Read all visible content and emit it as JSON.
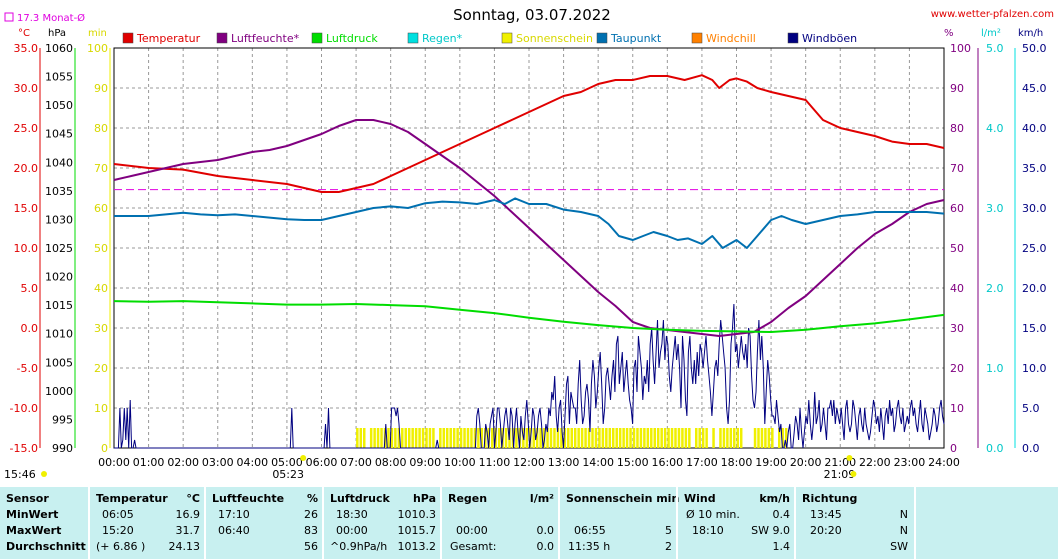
{
  "header": {
    "title": "Sonntag, 03.07.2022",
    "site": "www.wetter-pfalzen.com",
    "month_avg": "17.3 Monat-Ø",
    "footer_time": "15:46"
  },
  "colors": {
    "temperature": "#e00000",
    "humidity": "#800080",
    "pressure": "#00dd00",
    "rain": "#00e0e0",
    "sunshine": "#f0f000",
    "dewpoint": "#0070b0",
    "windchill": "#ff8000",
    "gusts": "#000080",
    "month_avg": "#e000e0"
  },
  "chart_data": {
    "type": "line",
    "title": "Sonntag, 03.07.2022",
    "x_range_hours": [
      0,
      24
    ],
    "x_ticks": [
      "00:00",
      "01:00",
      "02:00",
      "03:00",
      "04:00",
      "05:00",
      "06:00",
      "07:00",
      "08:00",
      "09:00",
      "10:00",
      "11:00",
      "12:00",
      "13:00",
      "14:00",
      "15:00",
      "16:00",
      "17:00",
      "18:00",
      "19:00",
      "20:00",
      "21:00",
      "22:00",
      "23:00",
      "24:00"
    ],
    "sunrise": "05:23",
    "sunset": "21:09",
    "month_avg_temp": 17.3,
    "axes": {
      "temp": {
        "unit": "°C",
        "range": [
          -15,
          35
        ],
        "ticks": [
          "35.0",
          "30.0",
          "25.0",
          "20.0",
          "15.0",
          "10.0",
          "5.0",
          "0.0",
          "-5.0",
          "-10.0",
          "-15.0"
        ]
      },
      "pressure": {
        "unit": "hPa",
        "range": [
          990,
          1060
        ],
        "ticks": [
          "1060",
          "1055",
          "1050",
          "1045",
          "1040",
          "1035",
          "1030",
          "1025",
          "1020",
          "1015",
          "1010",
          "1005",
          "1000",
          "995",
          "990"
        ]
      },
      "sun": {
        "unit": "min",
        "range": [
          0,
          100
        ],
        "ticks": [
          "100",
          "90",
          "80",
          "70",
          "60",
          "50",
          "40",
          "30",
          "20",
          "10",
          "0"
        ]
      },
      "humidity": {
        "unit": "%",
        "range": [
          0,
          100
        ],
        "ticks": [
          "100",
          "90",
          "80",
          "70",
          "60",
          "50",
          "40",
          "30",
          "20",
          "10",
          "0"
        ]
      },
      "rain": {
        "unit": "l/m²",
        "range": [
          0,
          5
        ],
        "ticks": [
          "5.0",
          "4.0",
          "3.0",
          "2.0",
          "1.0",
          "0.0"
        ]
      },
      "wind": {
        "unit": "km/h",
        "range": [
          0,
          50
        ],
        "ticks": [
          "50.0",
          "45.0",
          "40.0",
          "35.0",
          "30.0",
          "25.0",
          "20.0",
          "15.0",
          "10.0",
          "5.0",
          "0.0"
        ]
      }
    },
    "legend": [
      {
        "key": "temperature",
        "label": "Temperatur"
      },
      {
        "key": "humidity",
        "label": "Luftfeuchte*"
      },
      {
        "key": "pressure",
        "label": "Luftdruck"
      },
      {
        "key": "rain",
        "label": "Regen*"
      },
      {
        "key": "sunshine",
        "label": "Sonnenschein"
      },
      {
        "key": "dewpoint",
        "label": "Taupunkt"
      },
      {
        "key": "windchill",
        "label": "Windchill"
      },
      {
        "key": "gusts",
        "label": "Windböen"
      }
    ],
    "series": [
      {
        "key": "temperature",
        "x": [
          0,
          1,
          2,
          3,
          4,
          5,
          5.5,
          6,
          6.5,
          7,
          7.5,
          8,
          8.5,
          9,
          9.5,
          10,
          10.5,
          11,
          11.5,
          12,
          12.5,
          13,
          13.5,
          14,
          14.5,
          15,
          15.5,
          16,
          16.5,
          17,
          17.3,
          17.5,
          17.8,
          18,
          18.3,
          18.6,
          19,
          19.5,
          20,
          20.5,
          21,
          21.5,
          22,
          22.5,
          23,
          23.5,
          24
        ],
        "y": [
          20.5,
          20.0,
          19.8,
          19.0,
          18.5,
          18.0,
          17.5,
          17.0,
          17.0,
          17.5,
          18.0,
          19.0,
          20.0,
          21.0,
          22.0,
          23.0,
          24.0,
          25.0,
          26.0,
          27.0,
          28.0,
          29.0,
          29.5,
          30.5,
          31.0,
          31.0,
          31.5,
          31.5,
          31.0,
          31.6,
          31.0,
          30.0,
          31.0,
          31.2,
          30.8,
          30.0,
          29.5,
          29.0,
          28.5,
          26.0,
          25.0,
          24.5,
          24.0,
          23.3,
          23.0,
          23.0,
          22.5
        ]
      },
      {
        "key": "humidity",
        "x": [
          0,
          0.5,
          1,
          1.5,
          2,
          2.5,
          3,
          3.5,
          4,
          4.5,
          5,
          5.5,
          6,
          6.5,
          7,
          7.5,
          8,
          8.5,
          9,
          9.5,
          10,
          10.5,
          11,
          11.5,
          12,
          12.5,
          13,
          13.5,
          14,
          14.5,
          15,
          15.5,
          16,
          16.5,
          17,
          17.5,
          18,
          18.5,
          19,
          19.5,
          20,
          20.5,
          21,
          21.5,
          22,
          22.5,
          23,
          23.5,
          24
        ],
        "y": [
          67,
          68,
          69,
          70,
          71,
          71.5,
          72,
          73,
          74,
          74.5,
          75.5,
          77,
          78.5,
          80.5,
          82,
          82,
          81,
          79,
          76,
          73,
          70,
          66.5,
          63,
          59,
          55,
          51,
          47,
          43,
          39,
          35.5,
          31.5,
          30,
          29.5,
          29,
          28.5,
          28,
          28.5,
          29,
          31.5,
          35,
          38,
          42,
          46,
          50,
          53.5,
          56,
          59,
          61,
          62
        ]
      },
      {
        "key": "pressure",
        "x": [
          0,
          1,
          2,
          3,
          4,
          5,
          6,
          7,
          8,
          9,
          10,
          11,
          12,
          13,
          14,
          15,
          16,
          17,
          18,
          19,
          20,
          21,
          22,
          23,
          24
        ],
        "y": [
          1015.7,
          1015.6,
          1015.7,
          1015.5,
          1015.3,
          1015.1,
          1015.1,
          1015.2,
          1015.0,
          1014.8,
          1014.2,
          1013.6,
          1012.8,
          1012.1,
          1011.5,
          1011.0,
          1010.7,
          1010.5,
          1010.4,
          1010.3,
          1010.7,
          1011.3,
          1011.8,
          1012.5,
          1013.3
        ]
      },
      {
        "key": "dewpoint",
        "x": [
          0,
          0.5,
          1,
          1.5,
          2,
          2.5,
          3,
          3.5,
          4,
          4.5,
          5,
          5.5,
          6,
          6.5,
          7,
          7.5,
          8,
          8.5,
          9,
          9.5,
          10,
          10.5,
          11,
          11.3,
          11.6,
          12,
          12.5,
          13,
          13.5,
          14,
          14.3,
          14.6,
          15,
          15.3,
          15.6,
          16,
          16.3,
          16.6,
          17,
          17.3,
          17.6,
          18,
          18.3,
          18.6,
          19,
          19.3,
          19.6,
          20,
          20.5,
          21,
          21.5,
          22,
          22.5,
          23,
          23.5,
          24
        ],
        "y": [
          14.0,
          14.0,
          14.0,
          14.2,
          14.4,
          14.2,
          14.1,
          14.2,
          14.0,
          13.8,
          13.6,
          13.5,
          13.5,
          14.0,
          14.5,
          15.0,
          15.2,
          15.0,
          15.6,
          15.8,
          15.7,
          15.5,
          16.0,
          15.5,
          16.2,
          15.5,
          15.5,
          14.8,
          14.5,
          14.0,
          13.0,
          11.5,
          11.0,
          11.5,
          12.0,
          11.5,
          11.0,
          11.2,
          10.5,
          11.5,
          10.0,
          11.0,
          10.0,
          11.5,
          13.5,
          14.0,
          13.5,
          13.0,
          13.5,
          14.0,
          14.2,
          14.5,
          14.5,
          14.5,
          14.5,
          14.3
        ]
      }
    ],
    "sunshine_intervals": [
      [
        7.0,
        7.2
      ],
      [
        7.4,
        9.2
      ],
      [
        9.4,
        11.6
      ],
      [
        11.7,
        15.2
      ],
      [
        15.3,
        16.7
      ],
      [
        16.8,
        17.2
      ],
      [
        17.3,
        17.4
      ],
      [
        17.5,
        18.2
      ],
      [
        18.5,
        19.1
      ],
      [
        19.2,
        19.5
      ]
    ],
    "gust_samples": [
      0,
      0,
      0,
      0,
      5,
      0,
      1,
      5,
      1,
      5,
      0,
      6,
      0,
      0,
      1,
      0,
      0,
      0,
      0,
      0,
      0,
      0,
      0,
      0,
      0,
      0,
      0,
      0,
      0,
      0,
      0,
      0,
      0,
      0,
      0,
      0,
      0,
      0,
      0,
      0,
      0,
      0,
      0,
      0,
      0,
      0,
      0,
      0,
      0,
      0,
      0,
      0,
      0,
      0,
      0,
      0,
      0,
      0,
      0,
      0,
      0,
      0,
      0,
      0,
      0,
      0,
      0,
      0,
      0,
      0,
      0,
      0,
      0,
      0,
      0,
      0,
      0,
      0,
      0,
      0,
      0,
      0,
      0,
      0,
      0,
      0,
      0,
      0,
      0,
      0,
      0,
      0,
      0,
      0,
      0,
      0,
      0,
      0,
      0,
      0,
      0,
      0,
      0,
      0,
      0,
      0,
      0,
      0,
      0,
      0,
      0,
      0,
      0,
      0,
      0,
      0,
      0,
      0,
      0,
      0,
      0,
      5,
      0,
      0,
      0,
      0,
      0,
      0,
      0,
      0,
      0,
      0,
      0,
      0,
      0,
      0,
      0,
      0,
      0,
      0,
      0,
      0,
      0,
      0,
      3,
      0,
      5,
      0,
      0,
      0,
      0,
      0,
      0,
      0,
      0,
      0,
      0,
      0,
      0,
      0,
      0,
      0,
      0,
      0,
      0,
      0,
      0,
      0,
      0,
      0,
      0,
      0,
      0,
      0,
      0,
      0,
      0,
      0,
      0,
      0,
      0,
      0,
      0,
      0,
      0,
      3,
      0,
      0,
      0,
      5,
      5,
      5,
      4,
      5,
      3,
      0,
      0,
      0,
      0,
      0,
      0,
      0,
      0,
      0,
      0,
      0,
      0,
      0,
      0,
      0,
      0,
      0,
      0,
      0,
      0,
      0,
      0,
      0,
      0,
      0,
      1,
      0,
      0,
      0,
      0,
      0,
      0,
      0,
      0,
      0,
      0,
      0,
      0,
      0,
      0,
      0,
      0,
      0,
      0,
      0,
      0,
      0,
      0,
      0,
      0,
      0,
      0,
      4,
      5,
      3,
      0,
      0,
      0,
      3,
      2,
      0,
      3,
      4,
      5,
      0,
      2,
      5,
      5,
      3,
      0,
      2,
      4,
      5,
      3,
      1,
      5,
      4,
      0,
      3,
      5,
      2,
      0,
      4,
      2,
      1,
      4,
      6,
      3,
      0,
      2,
      5,
      4,
      1,
      2,
      4,
      5,
      3,
      0,
      1,
      3,
      2,
      5,
      4,
      7,
      6,
      9,
      4,
      2,
      5,
      6,
      2,
      0,
      4,
      8,
      9,
      3,
      7,
      6,
      5,
      5,
      3,
      8,
      11,
      6,
      3,
      4,
      7,
      8,
      6,
      2,
      8,
      11,
      9,
      5,
      7,
      10,
      12,
      8,
      3,
      5,
      9,
      10,
      8,
      6,
      9,
      11,
      7,
      13,
      14,
      8,
      10,
      12,
      7,
      9,
      11,
      8,
      6,
      5,
      3,
      10,
      11,
      7,
      14,
      12,
      10,
      6,
      9,
      8,
      11,
      7,
      13,
      15,
      11,
      8,
      12,
      16,
      10,
      12,
      13,
      16,
      11,
      14,
      13,
      9,
      7,
      10,
      12,
      14,
      11,
      13,
      10,
      5,
      14,
      11,
      6,
      4,
      12,
      14,
      10,
      8,
      11,
      8,
      12,
      9,
      13,
      12,
      10,
      12,
      14,
      11,
      9,
      7,
      4,
      7,
      10,
      11,
      9,
      13,
      16,
      14,
      12,
      10,
      5,
      3,
      6,
      13,
      15,
      18,
      12,
      13,
      10,
      12,
      14,
      12,
      11,
      13,
      10,
      15,
      14,
      9,
      6,
      5,
      7,
      12,
      16,
      11,
      14,
      10,
      3,
      7,
      11,
      9,
      6,
      4,
      4,
      3,
      6,
      4,
      2,
      3,
      0,
      0,
      1,
      0,
      2,
      3,
      0,
      0,
      2,
      4,
      3,
      1,
      5,
      2,
      0,
      2,
      4,
      3,
      6,
      3,
      1,
      3,
      7,
      3,
      4,
      6,
      2,
      3,
      5,
      3,
      1,
      5,
      5,
      6,
      4,
      6,
      3,
      5,
      4,
      3,
      5,
      3,
      1,
      5,
      6,
      3,
      2,
      3,
      6,
      5,
      3,
      1,
      4,
      5,
      3,
      2,
      5,
      3,
      2,
      1,
      2,
      4,
      6,
      5,
      3,
      4,
      2,
      5,
      3,
      1,
      4,
      5,
      3,
      6,
      4,
      5,
      2,
      3,
      5,
      6,
      4,
      3,
      5,
      2,
      3,
      4,
      3,
      5,
      6,
      4,
      5,
      3,
      2,
      4,
      6,
      3,
      2,
      5,
      4,
      3,
      1,
      2,
      3,
      5,
      4,
      2,
      3,
      5,
      6,
      4,
      3
    ]
  },
  "table": {
    "headers": {
      "sensor": "Sensor",
      "temp": "Temperatur",
      "temp_unit": "°C",
      "hum": "Luftfeuchte",
      "hum_unit": "%",
      "press": "Luftdruck",
      "press_unit": "hPa",
      "rain": "Regen",
      "rain_unit": "l/m²",
      "sun": "Sonnenschein min",
      "wind": "Wind",
      "wind_unit": "km/h",
      "dir": "Richtung"
    },
    "rows": [
      {
        "label": "MinWert",
        "temp_time": "06:05",
        "temp_val": "16.9",
        "hum_time": "17:10",
        "hum_val": "26",
        "press_time": "18:30",
        "press_val": "1010.3",
        "rain_time": "",
        "rain_val": "",
        "sun_time": "",
        "sun_val": "",
        "wind_time": "Ø 10 min.",
        "wind_val": "0.4",
        "dir_time": "13:45",
        "dir_val": "N"
      },
      {
        "label": "MaxWert",
        "temp_time": "15:20",
        "temp_val": "31.7",
        "hum_time": "06:40",
        "hum_val": "83",
        "press_time": "00:00",
        "press_val": "1015.7",
        "rain_time": "00:00",
        "rain_val": "0.0",
        "sun_time": "06:55",
        "sun_val": "5",
        "wind_time": "18:10",
        "wind_val": "SW 9.0",
        "dir_time": "20:20",
        "dir_val": "N"
      },
      {
        "label": "Durchschnitt",
        "temp_time": "(+ 6.86 )",
        "temp_val": "24.13",
        "hum_time": "",
        "hum_val": "56",
        "press_time": "^0.9hPa/h",
        "press_val": "1013.2",
        "rain_time": "Gesamt:",
        "rain_val": "0.0",
        "sun_time": "11:35 h",
        "sun_val": "2",
        "wind_time": "",
        "wind_val": "1.4",
        "dir_time": "",
        "dir_val": "SW"
      }
    ]
  }
}
